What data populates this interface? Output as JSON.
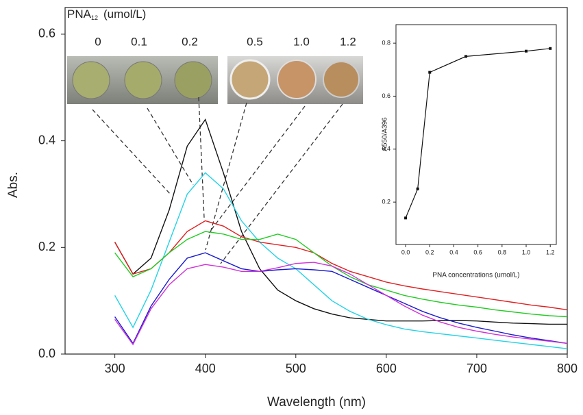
{
  "chart_data": [
    {
      "type": "line",
      "xlabel": "Wavelength (nm)",
      "ylabel": "Abs.",
      "annotation": {
        "label": "PNA",
        "subscript": "12",
        "unit": "(umol/L)"
      },
      "well_labels": [
        "0",
        "0.1",
        "0.2",
        "0.5",
        "1.0",
        "1.2"
      ],
      "x": [
        300,
        320,
        340,
        360,
        380,
        400,
        420,
        440,
        460,
        480,
        500,
        520,
        540,
        560,
        580,
        600,
        620,
        640,
        660,
        680,
        700,
        720,
        740,
        760,
        780,
        800
      ],
      "series": [
        {
          "color": "#111111",
          "values": [
            0.21,
            0.15,
            0.18,
            0.27,
            0.39,
            0.44,
            0.34,
            0.23,
            0.16,
            0.12,
            0.1,
            0.085,
            0.075,
            0.068,
            0.065,
            0.062,
            0.062,
            0.062,
            0.063,
            0.063,
            0.062,
            0.06,
            0.058,
            0.057,
            0.056,
            0.056
          ]
        },
        {
          "color": "#22d3e6",
          "values": [
            0.11,
            0.05,
            0.12,
            0.21,
            0.3,
            0.34,
            0.31,
            0.25,
            0.21,
            0.18,
            0.16,
            0.13,
            0.1,
            0.08,
            0.065,
            0.055,
            0.047,
            0.042,
            0.038,
            0.034,
            0.03,
            0.026,
            0.022,
            0.018,
            0.014,
            0.01
          ]
        },
        {
          "color": "#e02020",
          "values": [
            0.21,
            0.15,
            0.16,
            0.19,
            0.23,
            0.25,
            0.24,
            0.22,
            0.21,
            0.205,
            0.2,
            0.19,
            0.17,
            0.155,
            0.145,
            0.135,
            0.128,
            0.122,
            0.117,
            0.112,
            0.107,
            0.102,
            0.097,
            0.092,
            0.088,
            0.083
          ]
        },
        {
          "color": "#22cc22",
          "values": [
            0.19,
            0.145,
            0.16,
            0.19,
            0.215,
            0.23,
            0.225,
            0.215,
            0.215,
            0.225,
            0.215,
            0.19,
            0.165,
            0.145,
            0.13,
            0.12,
            0.11,
            0.103,
            0.097,
            0.092,
            0.088,
            0.083,
            0.079,
            0.075,
            0.072,
            0.07
          ]
        },
        {
          "color": "#1a1ad0",
          "values": [
            0.07,
            0.02,
            0.09,
            0.14,
            0.18,
            0.19,
            0.175,
            0.16,
            0.155,
            0.158,
            0.16,
            0.158,
            0.155,
            0.14,
            0.125,
            0.11,
            0.095,
            0.08,
            0.068,
            0.058,
            0.05,
            0.043,
            0.036,
            0.03,
            0.025,
            0.02
          ]
        },
        {
          "color": "#d030d8",
          "values": [
            0.065,
            0.018,
            0.085,
            0.13,
            0.16,
            0.168,
            0.163,
            0.155,
            0.155,
            0.162,
            0.17,
            0.172,
            0.165,
            0.15,
            0.13,
            0.11,
            0.09,
            0.073,
            0.06,
            0.05,
            0.043,
            0.037,
            0.032,
            0.028,
            0.024,
            0.02
          ]
        }
      ],
      "xlim": [
        245,
        800
      ],
      "ylim": [
        0,
        0.65
      ],
      "xticks": [
        300,
        400,
        500,
        600,
        700,
        800
      ],
      "yticks": [
        {
          "value": 0,
          "label": "0.0"
        },
        0.2,
        0.4,
        0.6
      ]
    },
    {
      "type": "line",
      "xlabel": "PNA concentrations (umol/L)",
      "ylabel": "A550/A396",
      "x": [
        0,
        0.1,
        0.2,
        0.5,
        1.0,
        1.2
      ],
      "series": [
        {
          "color": "#111111",
          "values": [
            0.14,
            0.25,
            0.69,
            0.75,
            0.77,
            0.78
          ]
        }
      ],
      "xlim": [
        -0.08,
        1.25
      ],
      "ylim": [
        0.04,
        0.87
      ],
      "xticks": [
        {
          "value": 0,
          "label": "0.0"
        },
        0.2,
        0.4,
        0.6,
        0.8,
        {
          "value": 1,
          "label": "1.0"
        },
        1.2
      ],
      "yticks": [
        0.2,
        0.4,
        0.6,
        0.8
      ]
    }
  ]
}
